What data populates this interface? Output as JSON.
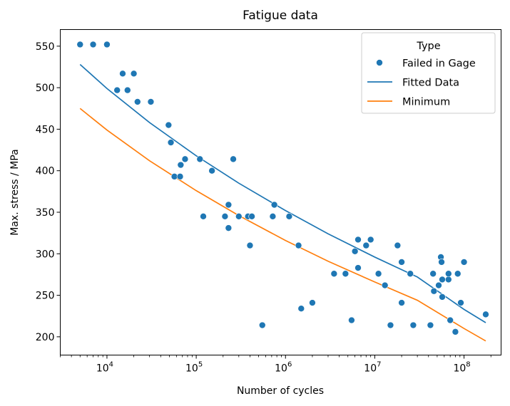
{
  "chart_data": {
    "type": "scatter",
    "title": "Fatigue data",
    "xlabel": "Number of cycles",
    "ylabel": "Max. stress / MPa",
    "xscale": "log",
    "xlim": [
      3000,
      260000000
    ],
    "ylim": [
      178,
      570
    ],
    "x_ticks": [
      {
        "value": 10000,
        "base": "10",
        "exp": "4"
      },
      {
        "value": 100000,
        "base": "10",
        "exp": "5"
      },
      {
        "value": 1000000,
        "base": "10",
        "exp": "6"
      },
      {
        "value": 10000000,
        "base": "10",
        "exp": "7"
      },
      {
        "value": 100000000,
        "base": "10",
        "exp": "8"
      }
    ],
    "y_ticks": [
      {
        "value": 200,
        "label": "200"
      },
      {
        "value": 250,
        "label": "250"
      },
      {
        "value": 300,
        "label": "300"
      },
      {
        "value": 350,
        "label": "350"
      },
      {
        "value": 400,
        "label": "400"
      },
      {
        "value": 450,
        "label": "450"
      },
      {
        "value": 500,
        "label": "500"
      },
      {
        "value": 550,
        "label": "550"
      }
    ],
    "grid": false,
    "legend": {
      "title": "Type",
      "position": "upper right",
      "entries": [
        {
          "label": "Failed in Gage",
          "kind": "marker",
          "color": "#1f77b4"
        },
        {
          "label": "Fitted Data",
          "kind": "line",
          "color": "#1f77b4"
        },
        {
          "label": "Minimum",
          "kind": "line",
          "color": "#ff7f0e"
        }
      ]
    },
    "series": [
      {
        "name": "Failed in Gage",
        "kind": "scatter",
        "color": "#1f77b4",
        "points": [
          [
            5000,
            552
          ],
          [
            7000,
            552
          ],
          [
            10000,
            552
          ],
          [
            15000,
            517
          ],
          [
            20000,
            517
          ],
          [
            13000,
            497
          ],
          [
            17000,
            497
          ],
          [
            22000,
            483
          ],
          [
            31000,
            483
          ],
          [
            49000,
            455
          ],
          [
            52000,
            434
          ],
          [
            75000,
            414
          ],
          [
            110000,
            414
          ],
          [
            260000,
            414
          ],
          [
            67000,
            407
          ],
          [
            57000,
            393
          ],
          [
            66000,
            393
          ],
          [
            150000,
            400
          ],
          [
            120000,
            345
          ],
          [
            210000,
            345
          ],
          [
            300000,
            345
          ],
          [
            380000,
            345
          ],
          [
            420000,
            345
          ],
          [
            720000,
            345
          ],
          [
            1100000,
            345
          ],
          [
            230000,
            359
          ],
          [
            750000,
            359
          ],
          [
            230000,
            331
          ],
          [
            400000,
            310
          ],
          [
            550000,
            214
          ],
          [
            1400000,
            310
          ],
          [
            1500000,
            234
          ],
          [
            2000000,
            241
          ],
          [
            3500000,
            276
          ],
          [
            4700000,
            276
          ],
          [
            5500000,
            220
          ],
          [
            6000000,
            303
          ],
          [
            6500000,
            317
          ],
          [
            9000000,
            317
          ],
          [
            6500000,
            283
          ],
          [
            8000000,
            310
          ],
          [
            11000000,
            276
          ],
          [
            13000000,
            262
          ],
          [
            15000000,
            214
          ],
          [
            18000000,
            310
          ],
          [
            20000000,
            290
          ],
          [
            20000000,
            241
          ],
          [
            25000000,
            276
          ],
          [
            27000000,
            214
          ],
          [
            42000000,
            214
          ],
          [
            45000000,
            276
          ],
          [
            46000000,
            255
          ],
          [
            52000000,
            262
          ],
          [
            55000000,
            296
          ],
          [
            56000000,
            290
          ],
          [
            57000000,
            269
          ],
          [
            57000000,
            248
          ],
          [
            67000000,
            269
          ],
          [
            67000000,
            276
          ],
          [
            70000000,
            220
          ],
          [
            80000000,
            206
          ],
          [
            85000000,
            276
          ],
          [
            92000000,
            241
          ],
          [
            100000000,
            290
          ],
          [
            175000000,
            227
          ]
        ]
      },
      {
        "name": "Fitted Data",
        "kind": "line",
        "color": "#1f77b4",
        "points": [
          [
            5000,
            528
          ],
          [
            10000,
            499
          ],
          [
            30000,
            458
          ],
          [
            100000,
            418
          ],
          [
            300000,
            385
          ],
          [
            1000000,
            352
          ],
          [
            3000000,
            324
          ],
          [
            10000000,
            296
          ],
          [
            30000000,
            272
          ],
          [
            100000000,
            233
          ],
          [
            175000000,
            217
          ]
        ]
      },
      {
        "name": "Minimum",
        "kind": "line",
        "color": "#ff7f0e",
        "points": [
          [
            5000,
            475
          ],
          [
            10000,
            449
          ],
          [
            30000,
            412
          ],
          [
            100000,
            376
          ],
          [
            300000,
            346
          ],
          [
            1000000,
            316
          ],
          [
            3000000,
            291
          ],
          [
            10000000,
            266
          ],
          [
            30000000,
            244
          ],
          [
            100000000,
            210
          ],
          [
            175000000,
            195
          ]
        ]
      }
    ]
  }
}
